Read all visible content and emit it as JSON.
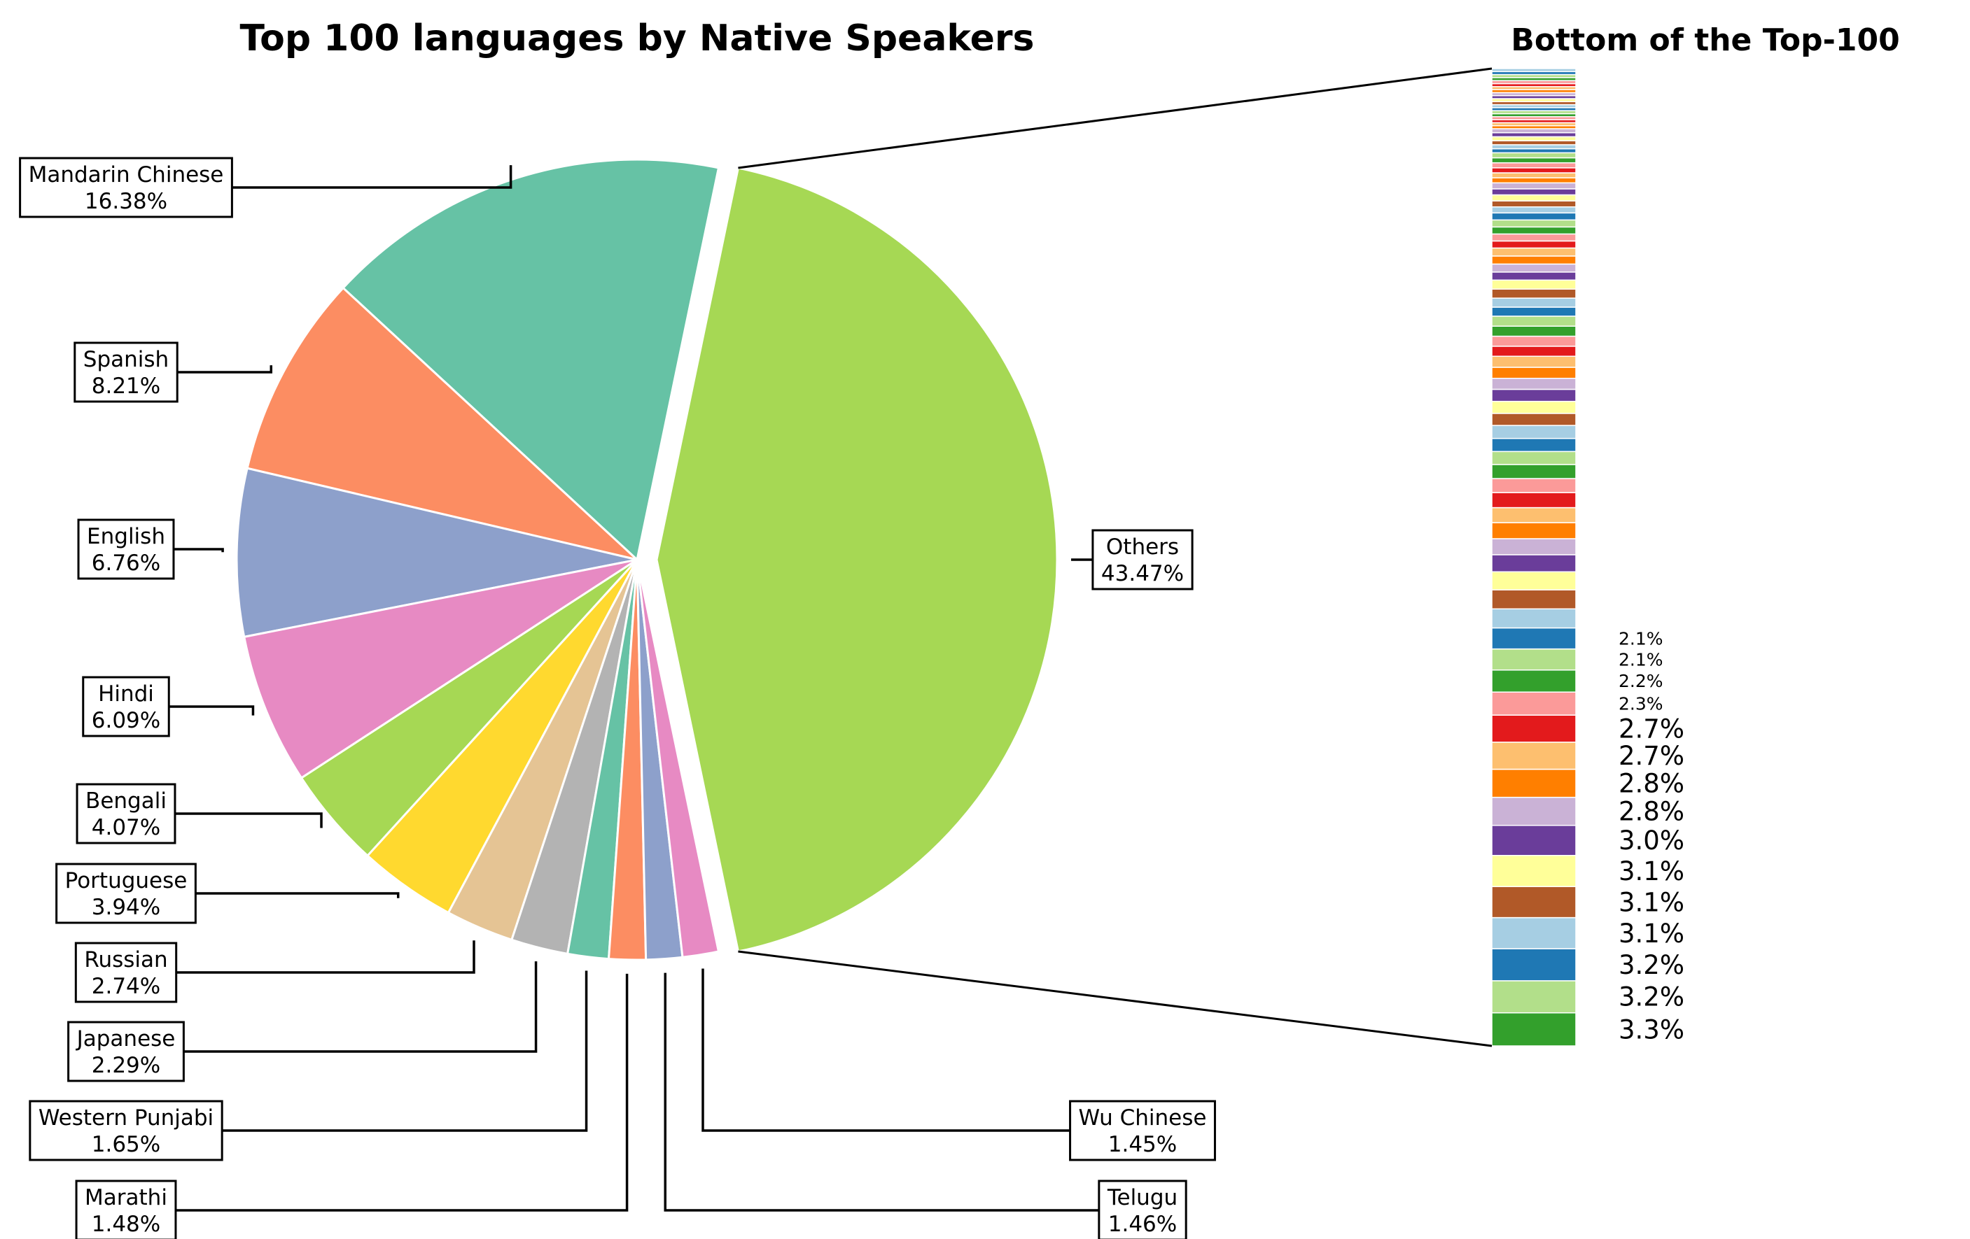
{
  "chart_data": [
    {
      "type": "pie",
      "title": "Top 100 languages by Native Speakers",
      "slices": [
        {
          "label": "Mandarin Chinese",
          "value": 16.38,
          "pct_text": "16.38%",
          "color": "#66c2a5"
        },
        {
          "label": "Spanish",
          "value": 8.21,
          "pct_text": "8.21%",
          "color": "#fc8d62"
        },
        {
          "label": "English",
          "value": 6.76,
          "pct_text": "6.76%",
          "color": "#8da0cb"
        },
        {
          "label": "Hindi",
          "value": 6.09,
          "pct_text": "6.09%",
          "color": "#e78ac3"
        },
        {
          "label": "Bengali",
          "value": 4.07,
          "pct_text": "4.07%",
          "color": "#a6d854"
        },
        {
          "label": "Portuguese",
          "value": 3.94,
          "pct_text": "3.94%",
          "color": "#ffd92f"
        },
        {
          "label": "Russian",
          "value": 2.74,
          "pct_text": "2.74%",
          "color": "#e5c494"
        },
        {
          "label": "Japanese",
          "value": 2.29,
          "pct_text": "2.29%",
          "color": "#b3b3b3"
        },
        {
          "label": "Western Punjabi",
          "value": 1.65,
          "pct_text": "1.65%",
          "color": "#66c2a5"
        },
        {
          "label": "Marathi",
          "value": 1.48,
          "pct_text": "1.48%",
          "color": "#fc8d62"
        },
        {
          "label": "Telugu",
          "value": 1.46,
          "pct_text": "1.46%",
          "color": "#8da0cb"
        },
        {
          "label": "Wu Chinese",
          "value": 1.45,
          "pct_text": "1.45%",
          "color": "#e78ac3"
        },
        {
          "label": "Others",
          "value": 43.47,
          "pct_text": "43.47%",
          "color": "#a6d854",
          "exploded": true
        }
      ]
    },
    {
      "type": "bar",
      "orientation": "stacked-vertical",
      "title": "Bottom of the Top-100",
      "palette": [
        "#33a02c",
        "#b2df8a",
        "#1f78b4",
        "#a6cee3",
        "#b15928",
        "#ffff99",
        "#6a3d9a",
        "#cab2d6",
        "#ff7f00",
        "#fdbf6f",
        "#e31a1c",
        "#fb9a99"
      ],
      "labeled_segments": [
        "3.3%",
        "3.2%",
        "3.2%",
        "3.1%",
        "3.1%",
        "3.1%",
        "3.0%",
        "2.8%",
        "2.8%",
        "2.7%",
        "2.7%",
        "2.3%",
        "2.2%",
        "2.1%",
        "2.1%"
      ],
      "unlabeled_values": [
        1.9,
        1.9,
        1.8,
        1.7,
        1.6,
        1.6,
        1.5,
        1.5,
        1.4,
        1.4,
        1.3,
        1.3,
        1.3,
        1.2,
        1.2,
        1.2,
        1.1,
        1.1,
        1.1,
        1.0,
        1.0,
        1.0,
        1.0,
        0.9,
        0.9,
        0.9,
        0.9,
        0.8,
        0.8,
        0.8,
        0.8,
        0.7,
        0.7,
        0.7,
        0.7,
        0.7,
        0.6,
        0.6,
        0.6,
        0.6,
        0.6,
        0.5,
        0.5,
        0.5,
        0.5,
        0.5,
        0.5,
        0.4,
        0.4,
        0.4,
        0.4,
        0.4,
        0.4,
        0.3,
        0.3,
        0.3,
        0.3,
        0.3,
        0.3,
        0.3,
        0.3,
        0.3,
        0.3,
        0.3,
        0.3,
        0.3,
        0.3,
        0.3,
        0.3,
        0.3,
        0.3,
        0.3,
        0.3
      ]
    }
  ]
}
